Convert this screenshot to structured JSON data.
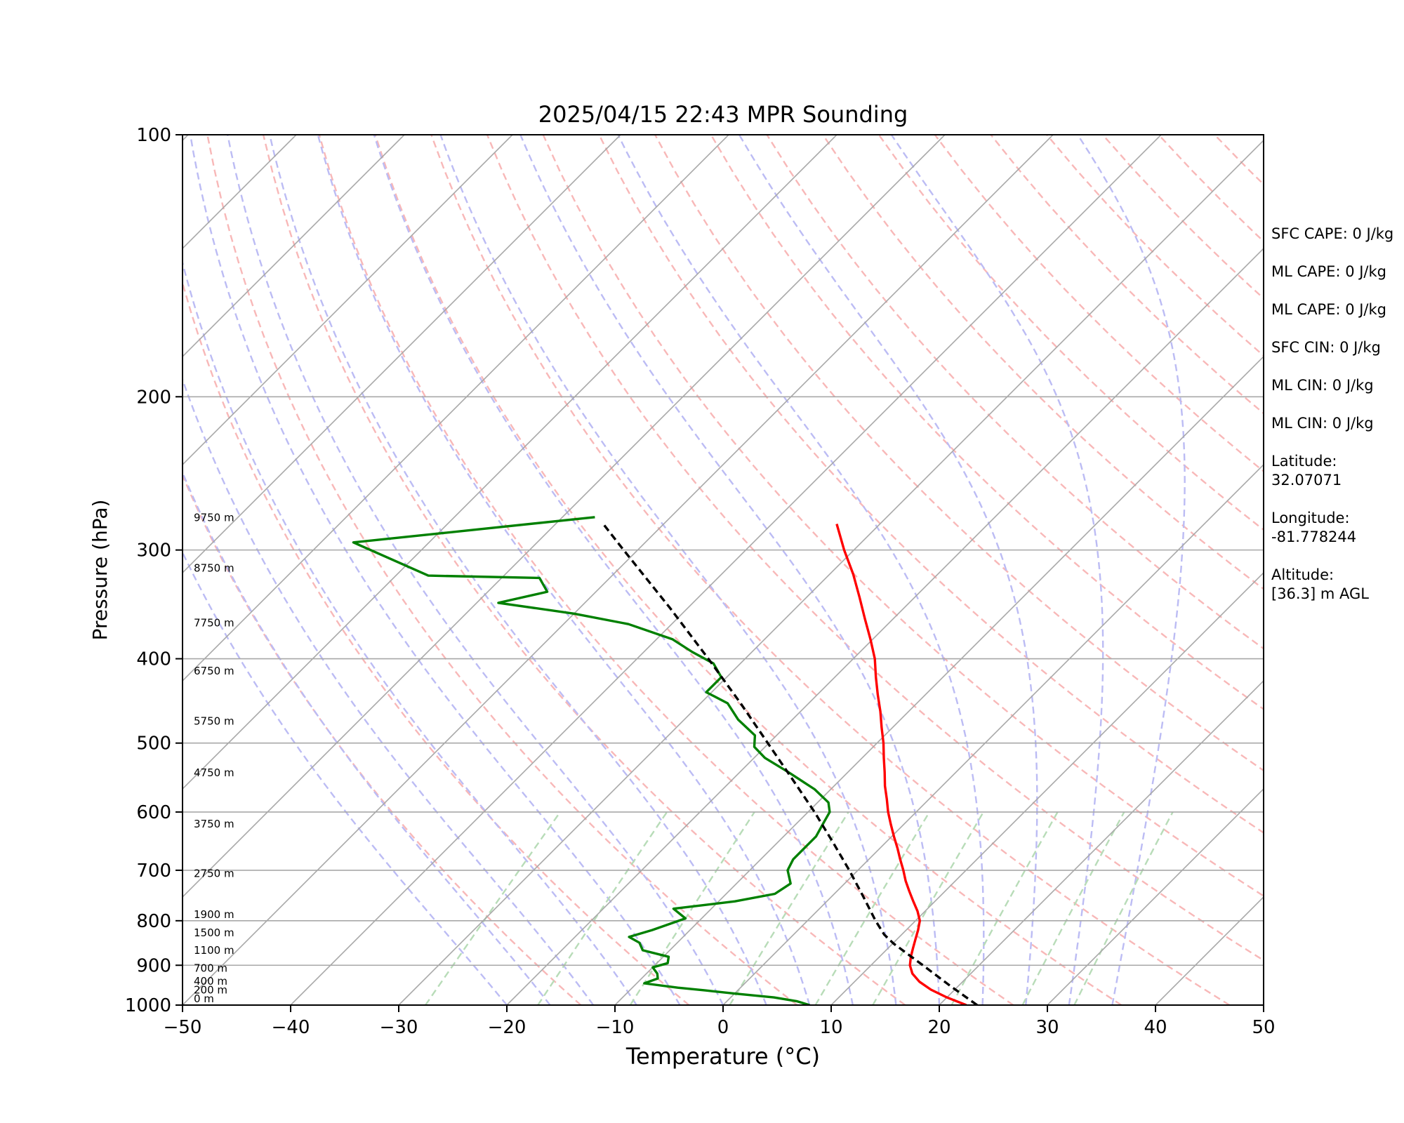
{
  "chart_data": {
    "type": "line",
    "subtype": "skew-t log-p sounding",
    "title": "2025/04/15 22:43 MPR Sounding",
    "xlabel": "Temperature (°C)",
    "ylabel": "Pressure (hPa)",
    "xlim": [
      -50,
      50
    ],
    "ylim": [
      1000,
      100
    ],
    "y_scale": "log",
    "x_ticks": [
      -50,
      -40,
      -30,
      -20,
      -10,
      0,
      10,
      20,
      30,
      40,
      50
    ],
    "x_tick_labels": [
      "−50",
      "−40",
      "−30",
      "−20",
      "−10",
      "0",
      "10",
      "20",
      "30",
      "40",
      "50"
    ],
    "y_ticks": [
      100,
      200,
      300,
      400,
      500,
      600,
      700,
      800,
      900,
      1000
    ],
    "y_tick_labels": [
      "100",
      "200",
      "300",
      "400",
      "500",
      "600",
      "700",
      "800",
      "900",
      "1000"
    ],
    "grid": true,
    "background_lines": {
      "isotherms_color": "#a8a8a8",
      "dry_adiabats_color": "#f8b8b8",
      "moist_adiabats_color": "#bcbcf4",
      "mixing_ratio_color": "#b8dcb8"
    },
    "height_labels": [
      {
        "pressure": 1000,
        "text": "0 m"
      },
      {
        "pressure": 977,
        "text": "200 m"
      },
      {
        "pressure": 955,
        "text": "400 m"
      },
      {
        "pressure": 922,
        "text": "700 m"
      },
      {
        "pressure": 880,
        "text": "1100 m"
      },
      {
        "pressure": 840,
        "text": "1500 m"
      },
      {
        "pressure": 800,
        "text": "1900 m"
      },
      {
        "pressure": 718,
        "text": "2750 m"
      },
      {
        "pressure": 630,
        "text": "3750 m"
      },
      {
        "pressure": 550,
        "text": "4750 m"
      },
      {
        "pressure": 480,
        "text": "5750 m"
      },
      {
        "pressure": 420,
        "text": "6750 m"
      },
      {
        "pressure": 370,
        "text": "7750 m"
      },
      {
        "pressure": 320,
        "text": "8750 m"
      },
      {
        "pressure": 280,
        "text": "9750 m"
      }
    ],
    "series": [
      {
        "name": "",
        "variable": "temperature",
        "color": "#ff0000",
        "points": [
          {
            "p": 1000,
            "t": 22.5
          },
          {
            "p": 980,
            "t": 20.0
          },
          {
            "p": 960,
            "t": 17.8
          },
          {
            "p": 940,
            "t": 16.0
          },
          {
            "p": 920,
            "t": 14.6
          },
          {
            "p": 900,
            "t": 13.6
          },
          {
            "p": 880,
            "t": 12.9
          },
          {
            "p": 860,
            "t": 12.3
          },
          {
            "p": 840,
            "t": 11.7
          },
          {
            "p": 820,
            "t": 11.1
          },
          {
            "p": 800,
            "t": 10.4
          },
          {
            "p": 780,
            "t": 9.3
          },
          {
            "p": 760,
            "t": 8.0
          },
          {
            "p": 740,
            "t": 6.7
          },
          {
            "p": 720,
            "t": 5.4
          },
          {
            "p": 700,
            "t": 4.2
          },
          {
            "p": 680,
            "t": 2.9
          },
          {
            "p": 660,
            "t": 1.6
          },
          {
            "p": 640,
            "t": 0.2
          },
          {
            "p": 620,
            "t": -1.2
          },
          {
            "p": 600,
            "t": -2.6
          },
          {
            "p": 580,
            "t": -3.9
          },
          {
            "p": 560,
            "t": -5.3
          },
          {
            "p": 540,
            "t": -6.6
          },
          {
            "p": 520,
            "t": -8.0
          },
          {
            "p": 500,
            "t": -9.4
          },
          {
            "p": 480,
            "t": -11.0
          },
          {
            "p": 460,
            "t": -12.6
          },
          {
            "p": 440,
            "t": -14.4
          },
          {
            "p": 420,
            "t": -16.2
          },
          {
            "p": 400,
            "t": -18.0
          },
          {
            "p": 380,
            "t": -20.2
          },
          {
            "p": 360,
            "t": -22.6
          },
          {
            "p": 340,
            "t": -25.1
          },
          {
            "p": 320,
            "t": -27.8
          },
          {
            "p": 300,
            "t": -30.9
          },
          {
            "p": 280,
            "t": -34.0
          }
        ]
      },
      {
        "name": "",
        "variable": "dewpoint",
        "color": "#008000",
        "points": [
          {
            "p": 1000,
            "t": 8.0
          },
          {
            "p": 990,
            "t": 6.5
          },
          {
            "p": 980,
            "t": 4.0
          },
          {
            "p": 970,
            "t": 0.0
          },
          {
            "p": 962,
            "t": -3.0
          },
          {
            "p": 955,
            "t": -5.8
          },
          {
            "p": 944,
            "t": -9.3
          },
          {
            "p": 932,
            "t": -8.5
          },
          {
            "p": 920,
            "t": -9.0
          },
          {
            "p": 905,
            "t": -10.0
          },
          {
            "p": 895,
            "t": -9.0
          },
          {
            "p": 880,
            "t": -9.5
          },
          {
            "p": 865,
            "t": -12.5
          },
          {
            "p": 848,
            "t": -13.5
          },
          {
            "p": 835,
            "t": -15.0
          },
          {
            "p": 820,
            "t": -13.5
          },
          {
            "p": 795,
            "t": -11.5
          },
          {
            "p": 775,
            "t": -13.5
          },
          {
            "p": 760,
            "t": -8.5
          },
          {
            "p": 745,
            "t": -5.5
          },
          {
            "p": 725,
            "t": -5.0
          },
          {
            "p": 700,
            "t": -6.5
          },
          {
            "p": 680,
            "t": -7.0
          },
          {
            "p": 660,
            "t": -7.0
          },
          {
            "p": 640,
            "t": -7.0
          },
          {
            "p": 620,
            "t": -7.5
          },
          {
            "p": 600,
            "t": -8.0
          },
          {
            "p": 585,
            "t": -9.0
          },
          {
            "p": 565,
            "t": -11.5
          },
          {
            "p": 540,
            "t": -15.5
          },
          {
            "p": 520,
            "t": -19.0
          },
          {
            "p": 505,
            "t": -21.0
          },
          {
            "p": 490,
            "t": -22.0
          },
          {
            "p": 470,
            "t": -25.0
          },
          {
            "p": 450,
            "t": -27.5
          },
          {
            "p": 437,
            "t": -30.5
          },
          {
            "p": 420,
            "t": -30.5
          },
          {
            "p": 405,
            "t": -32.5
          },
          {
            "p": 393,
            "t": -35.5
          },
          {
            "p": 380,
            "t": -38.5
          },
          {
            "p": 365,
            "t": -44.0
          },
          {
            "p": 355,
            "t": -50.0
          },
          {
            "p": 345,
            "t": -58.0
          },
          {
            "p": 335,
            "t": -54.5
          },
          {
            "p": 323,
            "t": -56.5
          },
          {
            "p": 321,
            "t": -67.0
          },
          {
            "p": 294,
            "t": -77.0
          },
          {
            "p": 275,
            "t": -57.0
          }
        ]
      },
      {
        "name": "",
        "variable": "parcel",
        "color": "#000000",
        "dashed": true,
        "points": [
          {
            "p": 1000,
            "t": 23.5
          },
          {
            "p": 950,
            "t": 19.2
          },
          {
            "p": 900,
            "t": 14.8
          },
          {
            "p": 850,
            "t": 10.1
          },
          {
            "p": 830,
            "t": 8.4
          },
          {
            "p": 800,
            "t": 6.3
          },
          {
            "p": 750,
            "t": 2.9
          },
          {
            "p": 700,
            "t": -0.8
          },
          {
            "p": 650,
            "t": -4.9
          },
          {
            "p": 600,
            "t": -9.4
          },
          {
            "p": 550,
            "t": -14.5
          },
          {
            "p": 500,
            "t": -20.1
          },
          {
            "p": 450,
            "t": -26.3
          },
          {
            "p": 400,
            "t": -33.4
          },
          {
            "p": 350,
            "t": -41.6
          },
          {
            "p": 300,
            "t": -51.3
          },
          {
            "p": 280,
            "t": -55.6
          }
        ]
      }
    ],
    "annotations": [
      {
        "lines": [
          "SFC CAPE: 0 J/kg"
        ]
      },
      {
        "lines": [
          "ML CAPE: 0 J/kg"
        ]
      },
      {
        "lines": [
          "ML CAPE: 0 J/kg"
        ]
      },
      {
        "lines": [
          "SFC CIN: 0 J/kg"
        ]
      },
      {
        "lines": [
          "ML CIN: 0 J/kg"
        ]
      },
      {
        "lines": [
          "ML CIN: 0 J/kg"
        ]
      },
      {
        "lines": [
          "Latitude:",
          "32.07071"
        ]
      },
      {
        "lines": [
          "Longitude:",
          "-81.778244"
        ]
      },
      {
        "lines": [
          "Altitude:",
          "[36.3] m AGL"
        ]
      }
    ]
  }
}
